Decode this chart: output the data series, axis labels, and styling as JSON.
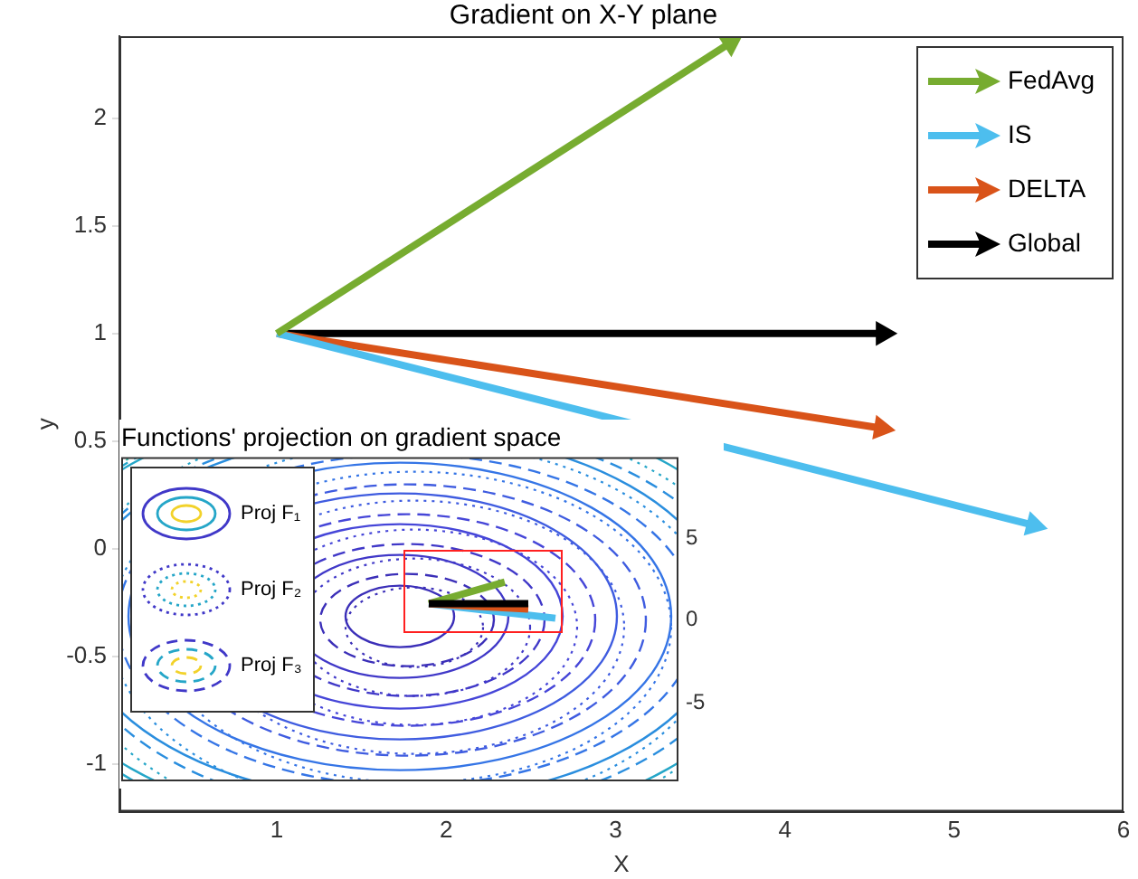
{
  "chart_data": [
    {
      "type": "line",
      "title": "Gradient on X-Y plane",
      "xlabel": "X",
      "ylabel": "y",
      "xlim": [
        0.07,
        6
      ],
      "ylim": [
        -1.22,
        2.38
      ],
      "xticks": [
        1,
        2,
        3,
        4,
        5,
        6
      ],
      "yticks": [
        -1,
        -0.5,
        0,
        0.5,
        1,
        1.5,
        2
      ],
      "grid": false,
      "legend": "top right",
      "series": [
        {
          "name": "FedAvg",
          "color": "#77ac30",
          "marker": "triangle",
          "x": [
            1,
            3.68
          ],
          "values": [
            1,
            2.35
          ]
        },
        {
          "name": "IS",
          "color": "#4dbeee",
          "marker": "triangle",
          "x": [
            1,
            5.47
          ],
          "values": [
            1,
            0.11
          ]
        },
        {
          "name": "DELTA",
          "color": "#d95319",
          "marker": "triangle",
          "x": [
            1,
            4.57
          ],
          "values": [
            1,
            0.56
          ]
        },
        {
          "name": "Global",
          "color": "#000000",
          "marker": "triangle",
          "x": [
            1,
            4.58
          ],
          "values": [
            1,
            1
          ]
        }
      ]
    },
    {
      "type": "other",
      "title": "Functions' projection on gradient space",
      "annotations": [
        "Proj F₁",
        "Proj F₂",
        "Proj F₃",
        "5",
        "0",
        "-5"
      ]
    }
  ]
}
